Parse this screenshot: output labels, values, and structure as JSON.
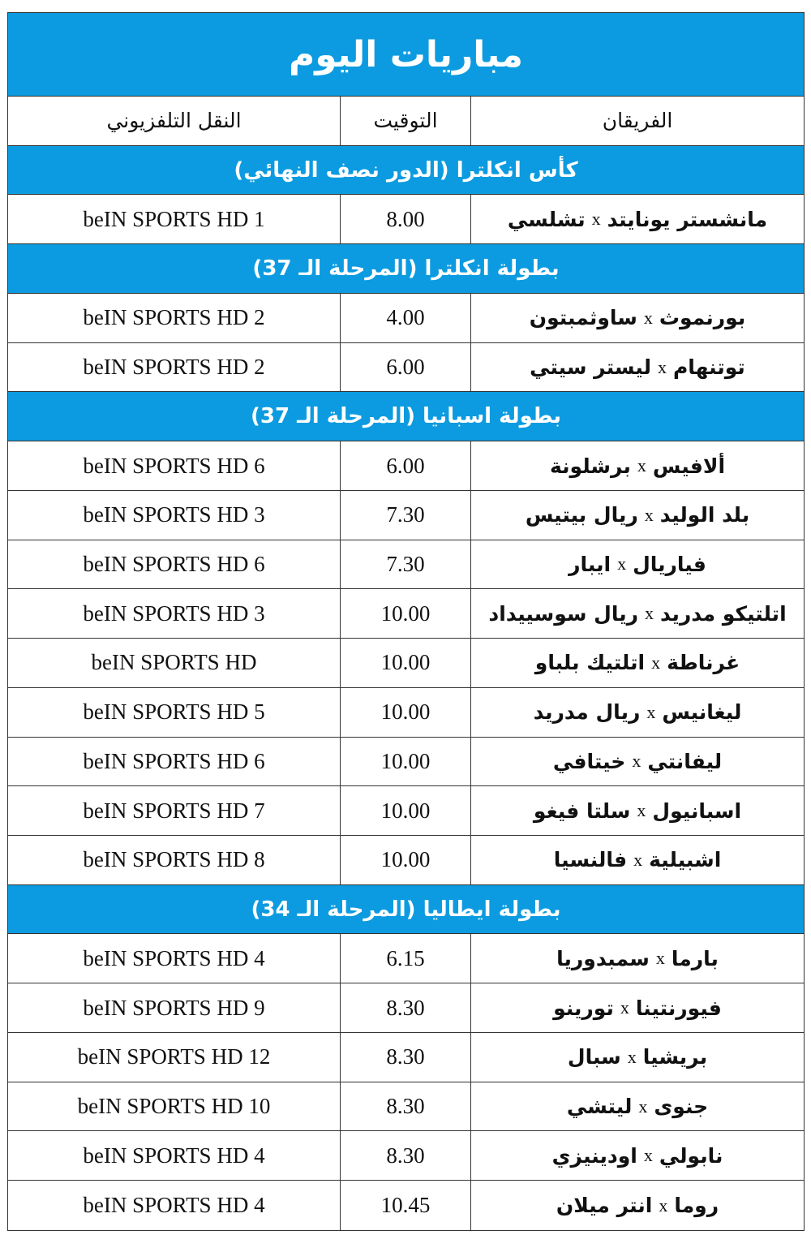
{
  "title": "مباريات اليوم",
  "headers": {
    "teams": "الفريقان",
    "time": "التوقيت",
    "tv": "النقل التلفزيوني"
  },
  "vs": "x",
  "colors": {
    "header_blue": "#0c9be0",
    "border": "#333333"
  },
  "sections": [
    {
      "title": "كأس انكلترا (الدور نصف النهائي)",
      "matches": [
        {
          "home": "مانشستر يونايتد",
          "away": "تشلسي",
          "time": "8.00",
          "tv": "beIN SPORTS HD 1"
        }
      ]
    },
    {
      "title": "بطولة انكلترا (المرحلة الـ 37)",
      "matches": [
        {
          "home": "بورنموث",
          "away": "ساوثمبتون",
          "time": "4.00",
          "tv": "beIN SPORTS HD 2"
        },
        {
          "home": "توتنهام",
          "away": "ليستر سيتي",
          "time": "6.00",
          "tv": "beIN SPORTS HD 2"
        }
      ]
    },
    {
      "title": "بطولة اسبانيا (المرحلة الـ 37)",
      "matches": [
        {
          "home": "ألافيس",
          "away": "برشلونة",
          "time": "6.00",
          "tv": "beIN SPORTS HD 6"
        },
        {
          "home": "بلد الوليد",
          "away": "ريال بيتيس",
          "time": "7.30",
          "tv": "beIN SPORTS HD 3"
        },
        {
          "home": "فياريال",
          "away": "ايبار",
          "time": "7.30",
          "tv": "beIN SPORTS HD 6"
        },
        {
          "home": "اتلتيكو مدريد",
          "away": "ريال سوسييداد",
          "time": "10.00",
          "tv": "beIN SPORTS HD 3"
        },
        {
          "home": "غرناطة",
          "away": "اتلتيك بلباو",
          "time": "10.00",
          "tv": "beIN SPORTS HD"
        },
        {
          "home": "ليغانيس",
          "away": "ريال مدريد",
          "time": "10.00",
          "tv": "beIN SPORTS HD 5"
        },
        {
          "home": "ليفانتي",
          "away": "خيتافي",
          "time": "10.00",
          "tv": "beIN SPORTS HD 6"
        },
        {
          "home": "اسبانيول",
          "away": "سلتا فيغو",
          "time": "10.00",
          "tv": "beIN SPORTS HD 7"
        },
        {
          "home": "اشبيلية",
          "away": "فالنسيا",
          "time": "10.00",
          "tv": "beIN SPORTS HD 8"
        }
      ]
    },
    {
      "title": "بطولة ايطاليا (المرحلة الـ 34)",
      "matches": [
        {
          "home": "بارما",
          "away": "سمبدوريا",
          "time": "6.15",
          "tv": "beIN SPORTS HD 4"
        },
        {
          "home": "فيورنتينا",
          "away": "تورينو",
          "time": "8.30",
          "tv": "beIN SPORTS HD 9"
        },
        {
          "home": "بريشيا",
          "away": "سبال",
          "time": "8.30",
          "tv": "beIN SPORTS HD 12"
        },
        {
          "home": "جنوى",
          "away": "ليتشي",
          "time": "8.30",
          "tv": "beIN SPORTS HD 10"
        },
        {
          "home": "نابولي",
          "away": "اودينيزي",
          "time": "8.30",
          "tv": "beIN SPORTS HD 4"
        },
        {
          "home": "روما",
          "away": "انتر ميلان",
          "time": "10.45",
          "tv": "beIN SPORTS HD 4"
        }
      ]
    }
  ]
}
